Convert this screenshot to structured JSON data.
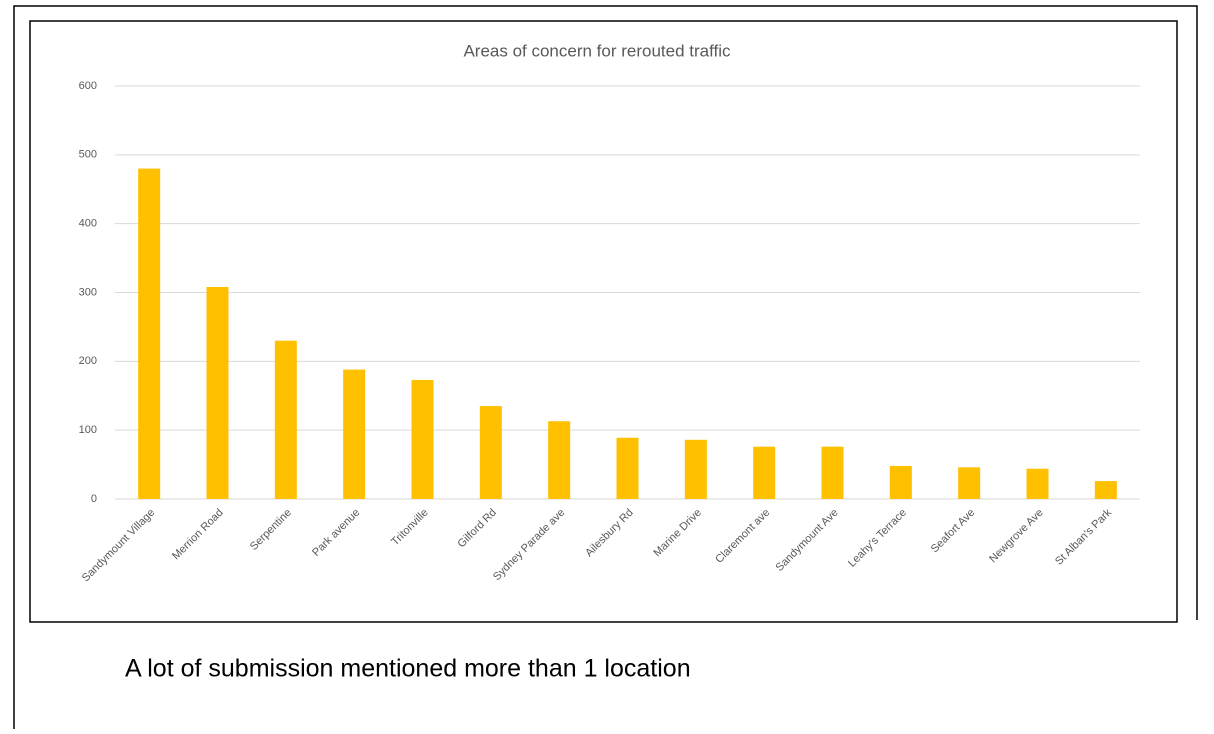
{
  "chart_data": {
    "type": "bar",
    "title": "Areas of concern for rerouted traffic",
    "categories": [
      "Sandymount Village",
      "Merrion Road",
      "Serpentine",
      "Park avenue",
      "Tritonville",
      "Gilford Rd",
      "Sydney Parade ave",
      "Ailesbury Rd",
      "Marine Drive",
      "Claremont ave",
      "Sandymount Ave",
      "Leahy's Terrace",
      "Seafort Ave",
      "Newgrove Ave",
      "St Alban's Park"
    ],
    "values": [
      480,
      308,
      230,
      188,
      173,
      135,
      113,
      89,
      86,
      76,
      76,
      48,
      46,
      44,
      26
    ],
    "color": "#ffc000",
    "ylim": [
      0,
      600
    ],
    "yticks": [
      0,
      100,
      200,
      300,
      400,
      500,
      600
    ],
    "grid": true
  },
  "caption": "A lot of submission mentioned more than 1 location"
}
